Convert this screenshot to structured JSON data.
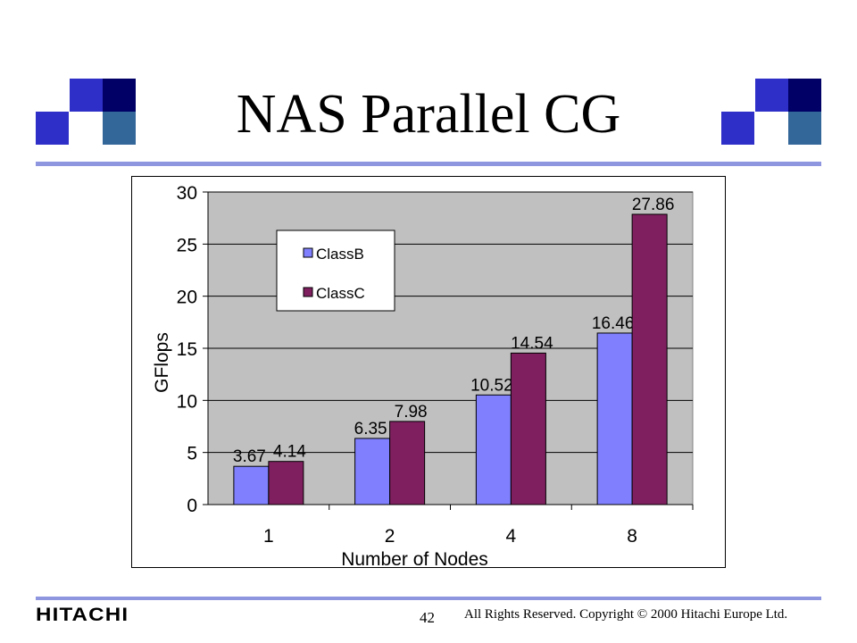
{
  "slide": {
    "title": "NAS Parallel CG",
    "footer": {
      "logo": "HITACHI",
      "page_number": "42",
      "copyright": "All Rights Reserved. Copyright © 2000 Hitachi Europe Ltd."
    },
    "colors": {
      "rule": "#8f96e0",
      "deco_dark": "#000066",
      "deco_blue": "#2e2ec8",
      "deco_steel": "#336699"
    }
  },
  "chart_data": {
    "type": "bar",
    "title": "",
    "xlabel": "Number of Nodes",
    "ylabel": "GFlops",
    "categories": [
      "1",
      "2",
      "4",
      "8"
    ],
    "ylim": [
      0,
      30
    ],
    "yticks": [
      "0",
      "5",
      "10",
      "15",
      "20",
      "25",
      "30"
    ],
    "grid": true,
    "legend_position": "top-left",
    "series": [
      {
        "name": "ClassB",
        "values": [
          3.67,
          6.35,
          10.52,
          16.46
        ],
        "labels": [
          "3.67",
          "6.35",
          "10.52",
          "16.46"
        ],
        "color": "#8080ff"
      },
      {
        "name": "ClassC",
        "values": [
          4.14,
          7.98,
          14.54,
          27.86
        ],
        "labels": [
          "4.14",
          "7.98",
          "14.54",
          "27.86"
        ],
        "color": "#7f1f5f"
      }
    ],
    "plot_background": "#c0c0c0"
  }
}
